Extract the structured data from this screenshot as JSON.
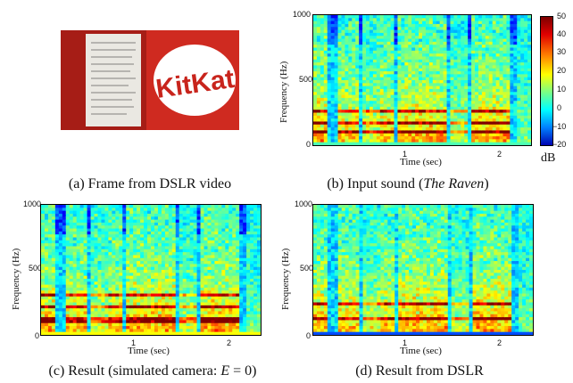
{
  "figure": {
    "panels": [
      {
        "id": "a",
        "caption_pre": "(a) Frame from DSLR video",
        "caption_it": "",
        "caption_post": ""
      },
      {
        "id": "b",
        "caption_pre": "(b) Input sound (",
        "caption_it": "The Raven",
        "caption_post": ")",
        "ylabel": "Frequency (Hz)",
        "xlabel": "Time (sec)",
        "yticks": [
          "0",
          "500",
          "1000"
        ],
        "xticks": [
          "1",
          "2"
        ]
      },
      {
        "id": "c",
        "caption_pre": "(c) Result (simulated camera: ",
        "caption_it": "E",
        "caption_post": " = 0)",
        "ylabel": "Frequency (Hz)",
        "xlabel": "Time (sec)",
        "yticks": [
          "0",
          "500",
          "1000"
        ],
        "xticks": [
          "1",
          "2"
        ]
      },
      {
        "id": "d",
        "caption_pre": "(d) Result from DSLR",
        "caption_it": "",
        "caption_post": "",
        "ylabel": "Frequency (Hz)",
        "xlabel": "Time (sec)",
        "yticks": [
          "0",
          "500",
          "1000"
        ],
        "xticks": [
          "1",
          "2"
        ]
      }
    ],
    "colorbar": {
      "unit": "dB",
      "ticks": [
        "50",
        "40",
        "30",
        "20",
        "10",
        "0",
        "−10",
        "−20"
      ],
      "colors": [
        "#7a0000",
        "#e00000",
        "#ff7f00",
        "#ffff00",
        "#7fff7f",
        "#00ffff",
        "#0080ff",
        "#0000b0"
      ]
    },
    "photo": {
      "label_text": "KitKat",
      "colors": {
        "wrapper": "#c8241c",
        "foil": "#eae8e2",
        "bg": "#b5221a"
      }
    }
  },
  "chart_data": [
    {
      "type": "heatmap",
      "title": "Input sound (The Raven)",
      "xlabel": "Time (sec)",
      "ylabel": "Frequency (Hz)",
      "xlim": [
        0,
        2.3
      ],
      "ylim": [
        0,
        1000
      ],
      "colorbar_range_db": [
        -20,
        50
      ]
    },
    {
      "type": "heatmap",
      "title": "Result (simulated camera: E = 0)",
      "xlabel": "Time (sec)",
      "ylabel": "Frequency (Hz)",
      "xlim": [
        0,
        2.3
      ],
      "ylim": [
        0,
        1000
      ]
    },
    {
      "type": "heatmap",
      "title": "Result from DSLR",
      "xlabel": "Time (sec)",
      "ylabel": "Frequency (Hz)",
      "xlim": [
        0,
        2.3
      ],
      "ylim": [
        0,
        1000
      ]
    }
  ]
}
